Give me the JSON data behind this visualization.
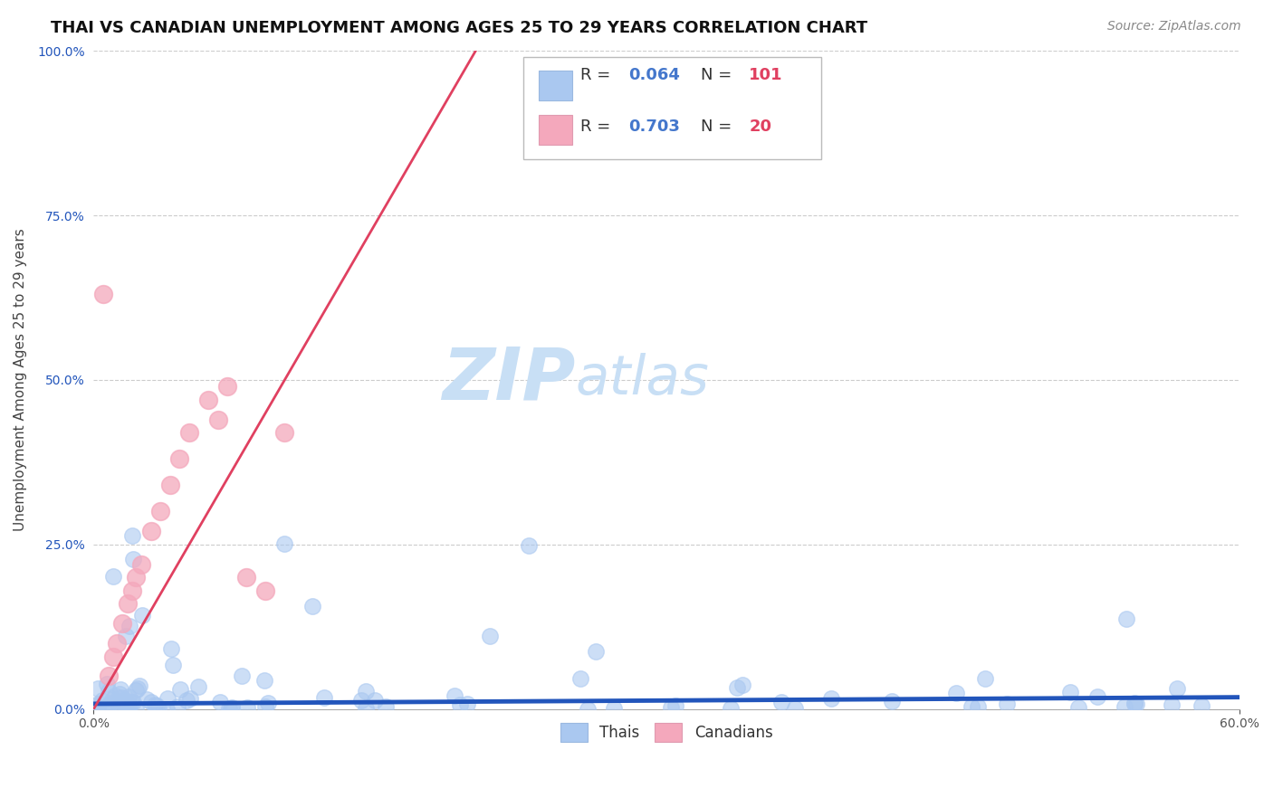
{
  "title": "THAI VS CANADIAN UNEMPLOYMENT AMONG AGES 25 TO 29 YEARS CORRELATION CHART",
  "source": "Source: ZipAtlas.com",
  "ylabel": "Unemployment Among Ages 25 to 29 years",
  "xlim": [
    0.0,
    0.6
  ],
  "ylim": [
    0.0,
    1.0
  ],
  "ytick_values": [
    0.0,
    0.25,
    0.5,
    0.75,
    1.0
  ],
  "xtick_values": [
    0.0,
    0.6
  ],
  "thai_color": "#aac8f0",
  "canadian_color": "#f4a8bc",
  "thai_line_color": "#2255bb",
  "canadian_line_color": "#e04060",
  "thai_R": 0.064,
  "thai_N": 101,
  "canadian_R": 0.703,
  "canadian_N": 20,
  "legend_color": "#4477cc",
  "legend_N_color": "#e04060",
  "watermark_zip": "ZIP",
  "watermark_atlas": "atlas",
  "watermark_color_zip": "#c8dff5",
  "watermark_color_atlas": "#c8dff5",
  "title_fontsize": 13,
  "source_fontsize": 10,
  "label_fontsize": 11,
  "tick_fontsize": 10,
  "canadian_scatter_x": [
    0.008,
    0.01,
    0.012,
    0.015,
    0.018,
    0.02,
    0.022,
    0.025,
    0.03,
    0.035,
    0.04,
    0.045,
    0.05,
    0.06,
    0.065,
    0.07,
    0.08,
    0.09,
    0.1,
    0.005
  ],
  "canadian_scatter_y": [
    0.05,
    0.08,
    0.1,
    0.13,
    0.16,
    0.18,
    0.2,
    0.22,
    0.27,
    0.3,
    0.34,
    0.38,
    0.42,
    0.47,
    0.44,
    0.49,
    0.2,
    0.18,
    0.42,
    0.63
  ]
}
